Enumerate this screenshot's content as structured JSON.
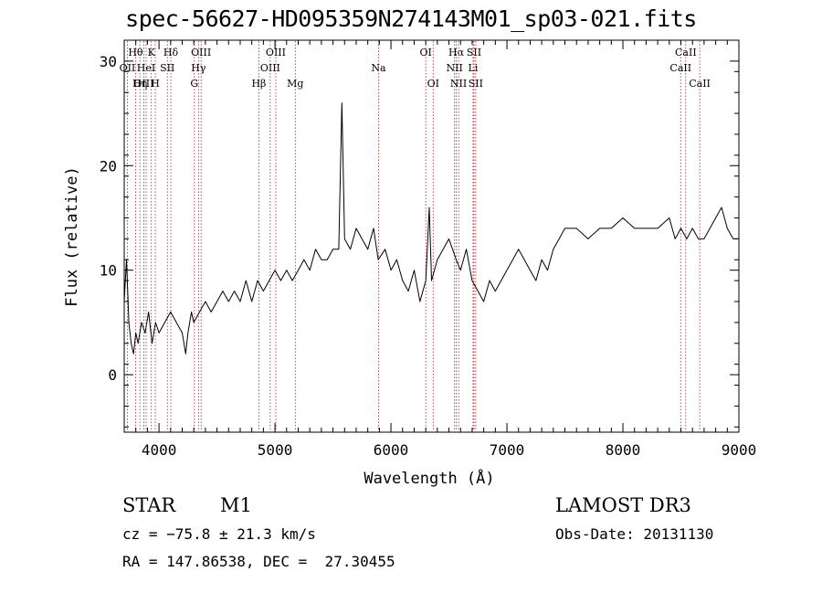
{
  "chart_data": {
    "type": "line",
    "title": "spec-56627-HD095359N274143M01_sp03-021.fits",
    "xlabel": "Wavelength (Å)",
    "ylabel": "Flux (relative)",
    "xlim": [
      3700,
      9000
    ],
    "ylim": [
      -5.5,
      32
    ],
    "x_ticks": [
      4000,
      5000,
      6000,
      7000,
      8000,
      9000
    ],
    "y_ticks": [
      0,
      10,
      20,
      30
    ],
    "grid": false,
    "legend": "none",
    "series": [
      {
        "x": [
          3700,
          3720,
          3740,
          3760,
          3780,
          3800,
          3820,
          3850,
          3880,
          3910,
          3940,
          3970,
          4000,
          4050,
          4100,
          4150,
          4200,
          4230,
          4250,
          4280,
          4300,
          4350,
          4400,
          4450,
          4500,
          4550,
          4600,
          4650,
          4700,
          4750,
          4800,
          4850,
          4900,
          4950,
          5000,
          5050,
          5100,
          5150,
          5200,
          5250,
          5300,
          5350,
          5400,
          5450,
          5500,
          5550,
          5577,
          5600,
          5650,
          5700,
          5750,
          5800,
          5850,
          5890,
          5950,
          6000,
          6050,
          6100,
          6150,
          6200,
          6250,
          6300,
          6330,
          6350,
          6400,
          6450,
          6500,
          6563,
          6600,
          6650,
          6700,
          6750,
          6800,
          6850,
          6900,
          6950,
          7000,
          7050,
          7100,
          7150,
          7200,
          7250,
          7300,
          7350,
          7400,
          7450,
          7500,
          7600,
          7700,
          7800,
          7900,
          8000,
          8100,
          8200,
          8300,
          8400,
          8450,
          8500,
          8550,
          8600,
          8650,
          8700,
          8750,
          8800,
          8850,
          8900,
          8950,
          8990
        ],
        "y": [
          7,
          11,
          5,
          3,
          2,
          4,
          3,
          5,
          4,
          6,
          3,
          5,
          4,
          5,
          6,
          5,
          4,
          2,
          4,
          6,
          5,
          6,
          7,
          6,
          7,
          8,
          7,
          8,
          7,
          9,
          7,
          9,
          8,
          9,
          10,
          9,
          10,
          9,
          10,
          11,
          10,
          12,
          11,
          11,
          12,
          12,
          26,
          13,
          12,
          14,
          13,
          12,
          14,
          11,
          12,
          10,
          11,
          9,
          8,
          10,
          7,
          9,
          16,
          9,
          11,
          12,
          13,
          11,
          10,
          12,
          9,
          8,
          7,
          9,
          8,
          9,
          10,
          11,
          12,
          11,
          10,
          9,
          11,
          10,
          12,
          13,
          14,
          14,
          13,
          14,
          14,
          15,
          14,
          14,
          14,
          15,
          13,
          14,
          13,
          14,
          13,
          13,
          14,
          15,
          16,
          14,
          13,
          13
        ]
      }
    ],
    "lines": [
      {
        "name": "Hθ",
        "x": 3798,
        "row": 1
      },
      {
        "name": "OII",
        "x": 3727,
        "row": 2
      },
      {
        "name": "OIII",
        "x": 3869,
        "row": 3
      },
      {
        "name": "HeI",
        "x": 3889,
        "row": 2
      },
      {
        "name": "Hη",
        "x": 3835,
        "row": 3
      },
      {
        "name": "K",
        "x": 3934,
        "row": 1
      },
      {
        "name": "H",
        "x": 3968,
        "row": 3
      },
      {
        "name": "SII",
        "x": 4072,
        "row": 2
      },
      {
        "name": "Hδ",
        "x": 4102,
        "row": 1
      },
      {
        "name": "OIII",
        "x": 4363,
        "row": 1
      },
      {
        "name": "Hγ",
        "x": 4341,
        "row": 2
      },
      {
        "name": "G",
        "x": 4305,
        "row": 3
      },
      {
        "name": "Hβ",
        "x": 4861,
        "row": 3
      },
      {
        "name": "OIII",
        "x": 5007,
        "row": 1
      },
      {
        "name": "OIII",
        "x": 4959,
        "row": 2
      },
      {
        "name": "Mg",
        "x": 5175,
        "row": 3
      },
      {
        "name": "Na",
        "x": 5893,
        "row": 2
      },
      {
        "name": "OI",
        "x": 6300,
        "row": 1
      },
      {
        "name": "OI",
        "x": 6364,
        "row": 3
      },
      {
        "name": "Hα",
        "x": 6563,
        "row": 1
      },
      {
        "name": "NII",
        "x": 6548,
        "row": 2
      },
      {
        "name": "NII",
        "x": 6583,
        "row": 3
      },
      {
        "name": "SII",
        "x": 6716,
        "row": 1
      },
      {
        "name": "Li",
        "x": 6708,
        "row": 2
      },
      {
        "name": "SII",
        "x": 6731,
        "row": 3
      },
      {
        "name": "CaII",
        "x": 8542,
        "row": 1
      },
      {
        "name": "CaII",
        "x": 8498,
        "row": 2
      },
      {
        "name": "CaII",
        "x": 8662,
        "row": 3
      }
    ]
  },
  "info": {
    "object_type": "STAR",
    "subclass": "M1",
    "survey": "LAMOST DR3",
    "cz": "cz = −75.8 ± 21.3 km/s",
    "obs_date": "Obs-Date: 20131130",
    "coords": "RA = 147.86538, DEC =  27.30455"
  }
}
